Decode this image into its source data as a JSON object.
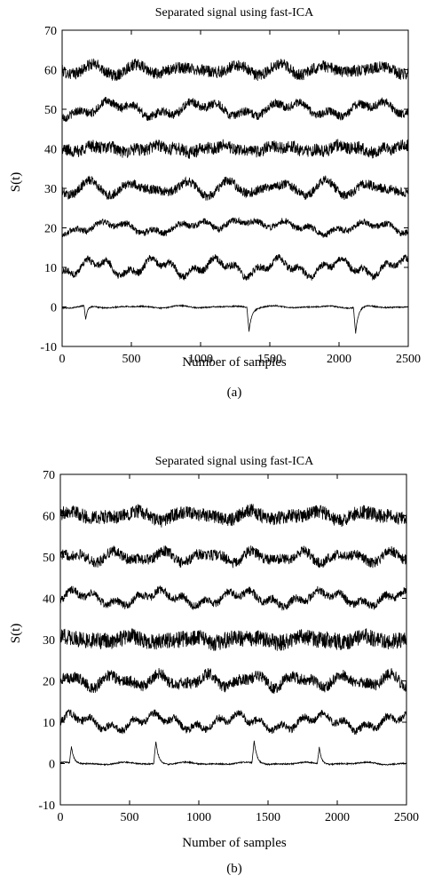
{
  "chart_data": [
    {
      "type": "line",
      "panel_label": "(a)",
      "title": "Separated signal using fast-ICA",
      "xlabel": "Number of samples",
      "ylabel": "S(t)",
      "xlim": [
        0,
        2500
      ],
      "ylim": [
        -10,
        70
      ],
      "xticks": [
        "0",
        "500",
        "1000",
        "1500",
        "2000",
        "2500"
      ],
      "yticks": [
        "-10",
        "0",
        "10",
        "20",
        "30",
        "40",
        "50",
        "60",
        "70"
      ],
      "grid": false,
      "legend": "none",
      "line_color": "#000000",
      "n_points": 2500,
      "series": [
        {
          "offset": 60,
          "noise_amp": 1.5,
          "wander_amp": 0.9
        },
        {
          "offset": 50,
          "noise_amp": 1.1,
          "wander_amp": 1.4
        },
        {
          "offset": 40,
          "noise_amp": 1.6,
          "wander_amp": 0.6
        },
        {
          "offset": 30,
          "noise_amp": 1.2,
          "wander_amp": 1.3
        },
        {
          "offset": 20,
          "noise_amp": 0.8,
          "wander_amp": 1.1,
          "bumps": [
            {
              "x": 1300,
              "h": 3,
              "w": 120
            }
          ]
        },
        {
          "offset": 10,
          "noise_amp": 0.9,
          "wander_amp": 1.6
        },
        {
          "offset": 0,
          "noise_amp": 0.15,
          "wander_amp": 0.2,
          "spikes": [
            {
              "x": 170,
              "h": -3.5,
              "w": 12
            },
            {
              "x": 1350,
              "h": -6,
              "w": 16
            },
            {
              "x": 2120,
              "h": -6.5,
              "w": 16
            }
          ]
        }
      ]
    },
    {
      "type": "line",
      "panel_label": "(b)",
      "title": "Separated signal using fast-ICA",
      "xlabel": "Number of samples",
      "ylabel": "S(t)",
      "xlim": [
        0,
        2500
      ],
      "ylim": [
        -10,
        70
      ],
      "xticks": [
        "0",
        "500",
        "1000",
        "1500",
        "2000",
        "2500"
      ],
      "yticks": [
        "-10",
        "0",
        "10",
        "20",
        "30",
        "40",
        "50",
        "60",
        "70"
      ],
      "grid": false,
      "legend": "none",
      "line_color": "#000000",
      "n_points": 2500,
      "series": [
        {
          "offset": 60,
          "noise_amp": 1.7,
          "wander_amp": 0.8
        },
        {
          "offset": 50,
          "noise_amp": 1.3,
          "wander_amp": 1.0
        },
        {
          "offset": 40,
          "noise_amp": 1.0,
          "wander_amp": 1.3
        },
        {
          "offset": 30,
          "noise_amp": 2.0,
          "wander_amp": 0.5
        },
        {
          "offset": 20,
          "noise_amp": 1.4,
          "wander_amp": 1.1
        },
        {
          "offset": 10,
          "noise_amp": 0.9,
          "wander_amp": 1.4
        },
        {
          "offset": 0,
          "noise_amp": 0.15,
          "wander_amp": 0.2,
          "spikes": [
            {
              "x": 80,
              "h": 4,
              "w": 14
            },
            {
              "x": 690,
              "h": 5.5,
              "w": 16
            },
            {
              "x": 1400,
              "h": 5.5,
              "w": 16
            },
            {
              "x": 1870,
              "h": 4,
              "w": 14
            }
          ]
        }
      ]
    }
  ]
}
